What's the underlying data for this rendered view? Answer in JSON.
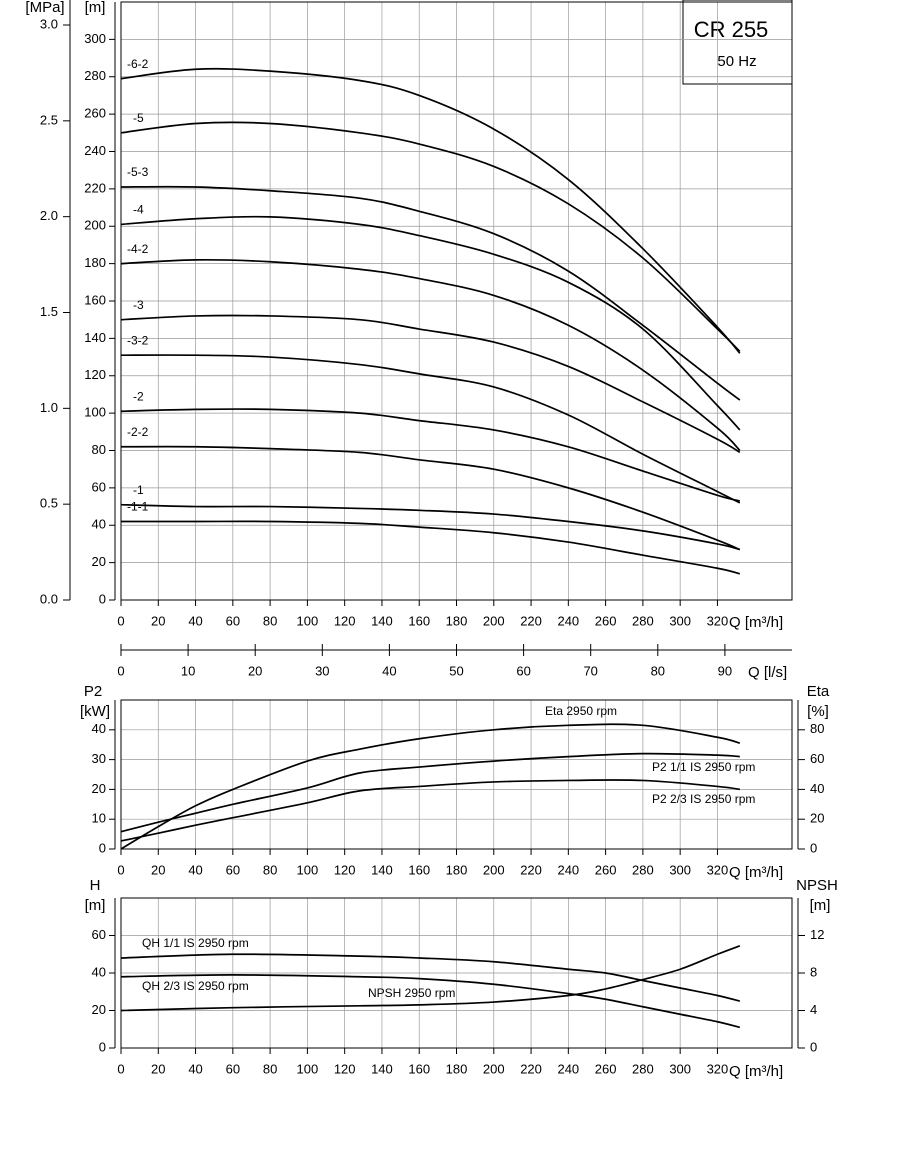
{
  "chart_data": [
    {
      "type": "line",
      "title": "CR 255",
      "subtitle": "50 Hz",
      "xlabel": "Q [m³/h]",
      "ylabel": "[m]",
      "y2label": "[MPa]",
      "x2label": "Q [l/s]",
      "x": [
        0,
        40,
        80,
        128,
        160,
        200,
        240,
        280,
        320,
        332
      ],
      "series": [
        {
          "name": "-6-2",
          "color": "#000000",
          "values": [
            279,
            284,
            283,
            278,
            270,
            252,
            225,
            188,
            146,
            132
          ]
        },
        {
          "name": "-5",
          "color": "#000000",
          "values": [
            250,
            255,
            255,
            250,
            244,
            232,
            212,
            183,
            145,
            133
          ]
        },
        {
          "name": "-5-3",
          "color": "#000000",
          "values": [
            221,
            221,
            219,
            215,
            208,
            196,
            176,
            147,
            116,
            107
          ]
        },
        {
          "name": "-4",
          "color": "#000000",
          "values": [
            201,
            204,
            205,
            201,
            195,
            185,
            170,
            145,
            104,
            91
          ]
        },
        {
          "name": "-4-2",
          "color": "#000000",
          "values": [
            180,
            182,
            181,
            177,
            172,
            163,
            147,
            123,
            92,
            80
          ]
        },
        {
          "name": "-3",
          "color": "#000000",
          "values": [
            150,
            152,
            152,
            150,
            145,
            138,
            125,
            106,
            86,
            79
          ]
        },
        {
          "name": "-3-2",
          "color": "#000000",
          "values": [
            131,
            131,
            130,
            126,
            121,
            114,
            99,
            78,
            58,
            52
          ]
        },
        {
          "name": "-2",
          "color": "#000000",
          "values": [
            101,
            102,
            102,
            100,
            96,
            91,
            82,
            69,
            56,
            53
          ]
        },
        {
          "name": "-2-2",
          "color": "#000000",
          "values": [
            82,
            82,
            81,
            79,
            75,
            70,
            60,
            47,
            32,
            27
          ]
        },
        {
          "name": "-1",
          "color": "#000000",
          "values": [
            51,
            50,
            50,
            49,
            48,
            46,
            42,
            37,
            30,
            27
          ]
        },
        {
          "name": "-1-1",
          "color": "#000000",
          "values": [
            42,
            42,
            42,
            41,
            39,
            36,
            31,
            24,
            17,
            14
          ]
        }
      ],
      "xlim": [
        0,
        360
      ],
      "xticks": [
        0,
        20,
        40,
        60,
        80,
        100,
        120,
        140,
        160,
        180,
        200,
        220,
        240,
        260,
        280,
        300,
        320
      ],
      "ylim": [
        0,
        320
      ],
      "yticks": [
        0,
        20,
        40,
        60,
        80,
        100,
        120,
        140,
        160,
        180,
        200,
        220,
        240,
        260,
        280,
        300
      ],
      "y2lim": [
        0,
        3.12
      ],
      "y2ticks": [
        {
          "value": 0,
          "label": "0.0"
        },
        0.5,
        {
          "value": 1,
          "label": "1.0"
        },
        1.5,
        {
          "value": 2,
          "label": "2.0"
        },
        2.5,
        {
          "value": 3,
          "label": "3.0"
        }
      ],
      "x2lim": [
        0,
        100
      ],
      "x2ticks": [
        0,
        10,
        20,
        30,
        40,
        50,
        60,
        70,
        80,
        90
      ],
      "grid": true
    },
    {
      "type": "line",
      "xlabel": "Q [m³/h]",
      "ylabel": "P2",
      "yunit": "[kW]",
      "y2label": "Eta",
      "y2unit": "[%]",
      "x": [
        0,
        20,
        40,
        60,
        100,
        128,
        160,
        200,
        240,
        280,
        320,
        332
      ],
      "series": [
        {
          "name": "Eta 2950 rpm",
          "color": "#000000",
          "axis": "y2",
          "values": [
            0,
            15,
            29,
            40,
            59,
            67,
            74,
            80,
            83,
            83,
            75,
            71
          ]
        },
        {
          "name": "P2 1/1 IS 2950 rpm",
          "color": "#000000",
          "values": [
            5.8,
            9,
            12,
            15,
            20.5,
            25.5,
            27.5,
            29.5,
            31,
            32,
            31.5,
            31
          ]
        },
        {
          "name": "P2 2/3 IS 2950 rpm",
          "color": "#000000",
          "values": [
            2.7,
            5.3,
            8,
            10.5,
            15.5,
            19.5,
            21,
            22.5,
            23,
            23,
            21,
            20
          ]
        }
      ],
      "xlim": [
        0,
        360
      ],
      "xticks": [
        0,
        20,
        40,
        60,
        80,
        100,
        120,
        140,
        160,
        180,
        200,
        220,
        240,
        260,
        280,
        300,
        320
      ],
      "ylim": [
        0,
        50
      ],
      "yticks": [
        0,
        10,
        20,
        30,
        40
      ],
      "y2lim": [
        0,
        100
      ],
      "y2ticks": [
        0,
        20,
        40,
        60,
        80
      ],
      "grid": true
    },
    {
      "type": "line",
      "xlabel": "Q [m³/h]",
      "ylabel": "H",
      "yunit": "[m]",
      "y2label": "NPSH",
      "y2unit": "[m]",
      "x": [
        0,
        60,
        128,
        160,
        200,
        240,
        260,
        280,
        300,
        320,
        332
      ],
      "series": [
        {
          "name": "QH 1/1 IS 2950 rpm",
          "color": "#000000",
          "values": [
            48,
            50,
            49,
            48,
            46,
            42,
            40,
            36,
            32,
            28,
            25
          ]
        },
        {
          "name": "QH 2/3 IS 2950 rpm",
          "color": "#000000",
          "values": [
            38,
            39,
            38,
            37,
            34,
            29,
            26,
            22,
            18,
            14,
            11
          ]
        },
        {
          "name": "NPSH 2950 rpm",
          "color": "#000000",
          "axis": "y2",
          "values": [
            4,
            4.3,
            4.5,
            4.6,
            4.9,
            5.6,
            6.3,
            7.3,
            8.4,
            10,
            10.9
          ]
        }
      ],
      "xlim": [
        0,
        360
      ],
      "xticks": [
        0,
        20,
        40,
        60,
        80,
        100,
        120,
        140,
        160,
        180,
        200,
        220,
        240,
        260,
        280,
        300,
        320
      ],
      "ylim": [
        0,
        80
      ],
      "yticks": [
        0,
        20,
        40,
        60
      ],
      "y2lim": [
        0,
        16
      ],
      "y2ticks": [
        0,
        4,
        8,
        12
      ],
      "grid": true
    }
  ]
}
